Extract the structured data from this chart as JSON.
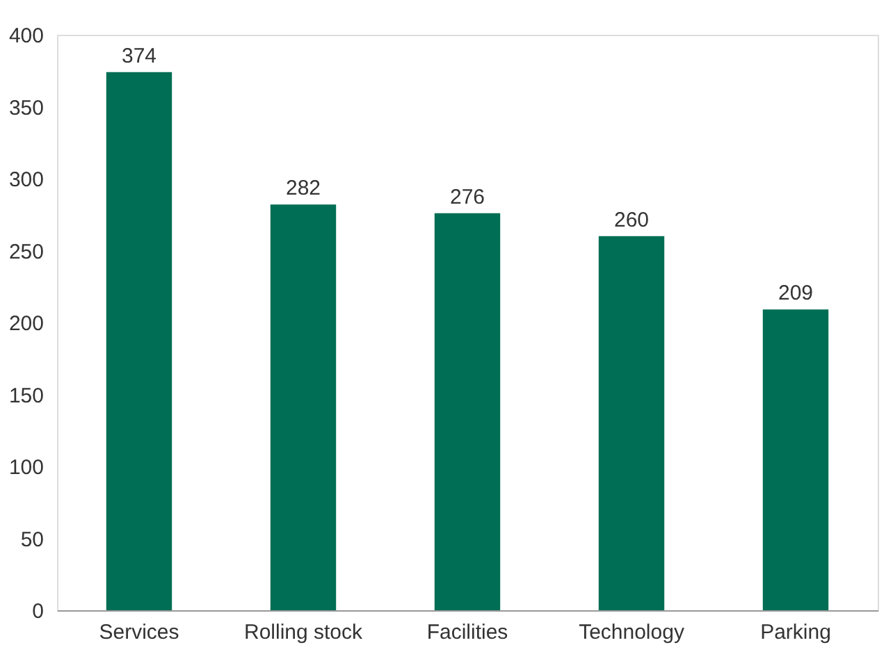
{
  "chart_data": {
    "type": "bar",
    "categories": [
      "Services",
      "Rolling stock",
      "Facilities",
      "Technology",
      "Parking"
    ],
    "values": [
      374,
      282,
      276,
      260,
      209
    ],
    "color": "#006e54",
    "ylim": [
      0,
      400
    ],
    "yticks": [
      0,
      50,
      100,
      150,
      200,
      250,
      300,
      350,
      400
    ],
    "data_labels": true
  }
}
